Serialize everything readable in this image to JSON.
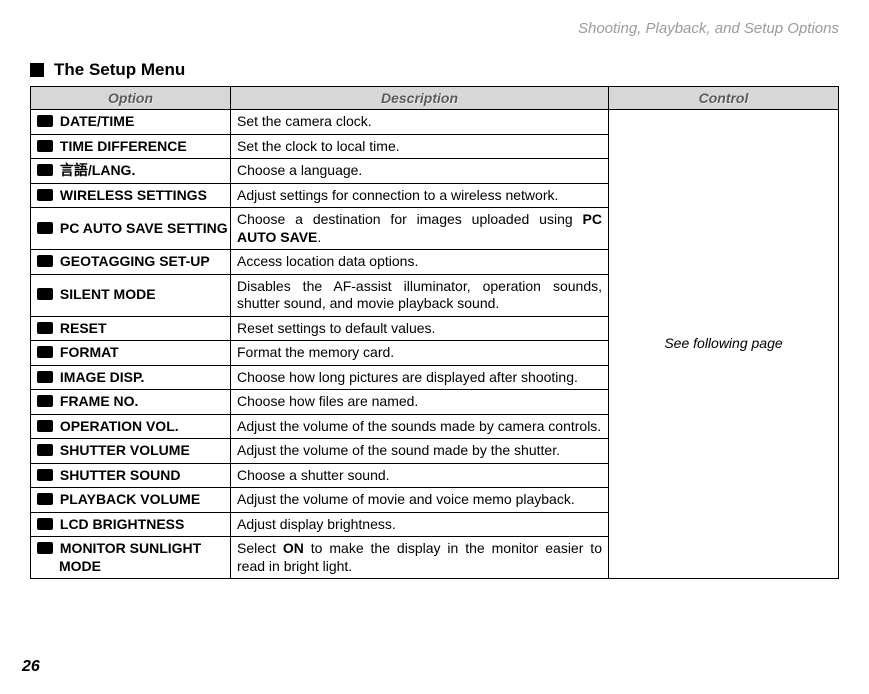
{
  "breadcrumb": "Shooting, Playback, and Setup Options",
  "section_title": "The Setup Menu",
  "headers": {
    "option": "Option",
    "description": "Description",
    "control": "Control"
  },
  "control_text": "See following page",
  "page_number": "26",
  "rows": [
    {
      "option": "DATE/TIME",
      "desc": "Set the camera clock."
    },
    {
      "option": "TIME DIFFERENCE",
      "desc": "Set the clock to local time."
    },
    {
      "option": "言語/LANG.",
      "desc": "Choose a language.",
      "prefix_space": true
    },
    {
      "option": "WIRELESS SETTINGS",
      "desc": "Adjust settings for connection to a wireless network."
    },
    {
      "option": "PC AUTO SAVE SETTING",
      "desc_html": "Choose a destination for images uploaded using <span class='ico'></span> <span class='bold'>PC AUTO SAVE</span>."
    },
    {
      "option": "GEOTAGGING SET-UP",
      "desc": "Access location data options."
    },
    {
      "option": "SILENT MODE",
      "desc": "Disables the AF-assist illuminator, operation sounds, shutter sound, and movie playback sound."
    },
    {
      "option": "RESET",
      "desc": "Reset settings to default values."
    },
    {
      "option": "FORMAT",
      "desc": "Format the memory card."
    },
    {
      "option": "IMAGE DISP.",
      "desc": "Choose how long pictures are displayed after shooting."
    },
    {
      "option": "FRAME NO.",
      "desc": "Choose how files are named."
    },
    {
      "option": "OPERATION VOL.",
      "desc": "Adjust the volume of the sounds made by camera controls."
    },
    {
      "option": "SHUTTER VOLUME",
      "desc": "Adjust the volume of the sound made by the shutter."
    },
    {
      "option": "SHUTTER SOUND",
      "desc": "Choose a shutter sound."
    },
    {
      "option": "PLAYBACK VOLUME",
      "desc": "Adjust the volume of movie and voice memo playback."
    },
    {
      "option": "LCD BRIGHTNESS",
      "desc": "Adjust display brightness."
    },
    {
      "option": "MONITOR SUNLIGHT",
      "option_line2": "MODE",
      "desc_html": "Select <span class='bold'>ON</span> to make the display in the monitor easier to read in bright light."
    }
  ]
}
